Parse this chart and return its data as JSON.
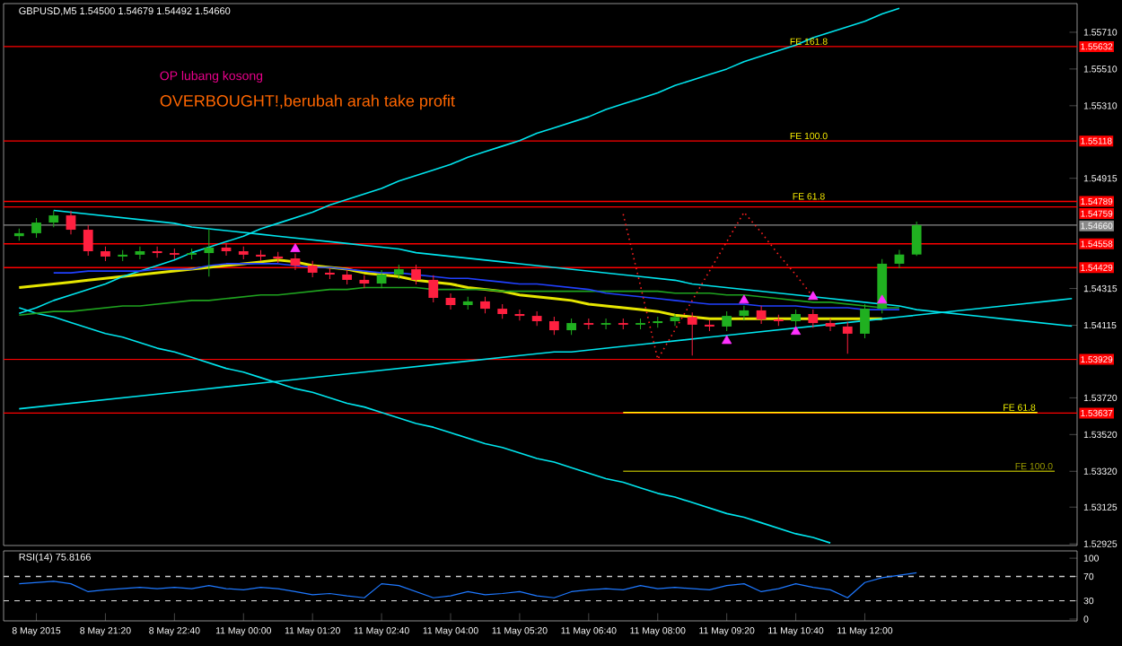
{
  "chart_data": [
    {
      "type": "candlestick",
      "title": "GBPUSD,M5  1.54500 1.54679 1.54492 1.54660",
      "categories": [
        null,
        null,
        null,
        null,
        null,
        null,
        null,
        null,
        null,
        null,
        null,
        null,
        null,
        null,
        null,
        null,
        null,
        null,
        null,
        null,
        null,
        null,
        null,
        null,
        null,
        null,
        null,
        null,
        null,
        null,
        null,
        null,
        null,
        null,
        null,
        null,
        null,
        null,
        null,
        null,
        null,
        null,
        null,
        null,
        null,
        null,
        null,
        null,
        null,
        null,
        null,
        null,
        null,
        null,
        null,
        null,
        null,
        null,
        null,
        null,
        null,
        null
      ],
      "ohlc": [
        [
          1.546,
          1.54641,
          1.54575,
          1.54616
        ],
        [
          1.54616,
          1.54699,
          1.54591,
          1.54674
        ],
        [
          1.54674,
          1.54738,
          1.54649,
          1.54713
        ],
        [
          1.54713,
          1.54738,
          1.5461,
          1.54635
        ],
        [
          1.54635,
          1.5466,
          1.54493,
          1.54518
        ],
        [
          1.54518,
          1.54543,
          1.54464,
          1.54489
        ],
        [
          1.54489,
          1.54524,
          1.54464,
          1.54499
        ],
        [
          1.54499,
          1.54543,
          1.54474,
          1.54518
        ],
        [
          1.54518,
          1.54543,
          1.54483,
          1.54508
        ],
        [
          1.54508,
          1.54533,
          1.54474,
          1.54499
        ],
        [
          1.54499,
          1.54533,
          1.54474,
          1.54508
        ],
        [
          1.54508,
          1.5464,
          1.5438,
          1.54538
        ],
        [
          1.54538,
          1.54563,
          1.54493,
          1.54518
        ],
        [
          1.54518,
          1.54543,
          1.54474,
          1.54499
        ],
        [
          1.54499,
          1.54524,
          1.54464,
          1.54489
        ],
        [
          1.54489,
          1.54514,
          1.54454,
          1.54479
        ],
        [
          1.54479,
          1.54504,
          1.54415,
          1.5444
        ],
        [
          1.5444,
          1.54465,
          1.54376,
          1.54401
        ],
        [
          1.54401,
          1.54426,
          1.54366,
          1.54391
        ],
        [
          1.54391,
          1.54416,
          1.54337,
          1.54362
        ],
        [
          1.54362,
          1.54387,
          1.54317,
          1.54342
        ],
        [
          1.54342,
          1.54416,
          1.54317,
          1.54391
        ],
        [
          1.54391,
          1.54445,
          1.54366,
          1.5442
        ],
        [
          1.5442,
          1.54445,
          1.54337,
          1.54362
        ],
        [
          1.54362,
          1.54387,
          1.54239,
          1.54264
        ],
        [
          1.54264,
          1.54289,
          1.542,
          1.54225
        ],
        [
          1.54225,
          1.5427,
          1.542,
          1.54245
        ],
        [
          1.54245,
          1.5427,
          1.5418,
          1.54205
        ],
        [
          1.54205,
          1.5423,
          1.54151,
          1.54176
        ],
        [
          1.54176,
          1.54201,
          1.54141,
          1.54166
        ],
        [
          1.54166,
          1.54191,
          1.54112,
          1.54137
        ],
        [
          1.54137,
          1.54162,
          1.54063,
          1.54088
        ],
        [
          1.54088,
          1.54152,
          1.54063,
          1.54127
        ],
        [
          1.54127,
          1.54152,
          1.54093,
          1.54118
        ],
        [
          1.54118,
          1.54152,
          1.54093,
          1.54127
        ],
        [
          1.54127,
          1.54152,
          1.54093,
          1.54118
        ],
        [
          1.54118,
          1.54152,
          1.54093,
          1.54127
        ],
        [
          1.54127,
          1.54162,
          1.54102,
          1.54137
        ],
        [
          1.54137,
          1.54175,
          1.54112,
          1.5416
        ],
        [
          1.5416,
          1.54185,
          1.5395,
          1.54118
        ],
        [
          1.54118,
          1.54143,
          1.54083,
          1.54108
        ],
        [
          1.54108,
          1.54191,
          1.54083,
          1.54166
        ],
        [
          1.54166,
          1.54221,
          1.54141,
          1.54196
        ],
        [
          1.54196,
          1.54221,
          1.54122,
          1.54147
        ],
        [
          1.54147,
          1.54172,
          1.54112,
          1.54137
        ],
        [
          1.54137,
          1.54201,
          1.54112,
          1.54176
        ],
        [
          1.54176,
          1.54201,
          1.54102,
          1.54127
        ],
        [
          1.54127,
          1.54152,
          1.54083,
          1.54108
        ],
        [
          1.54108,
          1.54133,
          1.5396,
          1.54069
        ],
        [
          1.54069,
          1.5423,
          1.54044,
          1.54205
        ],
        [
          1.54205,
          1.54475,
          1.5418,
          1.5445
        ],
        [
          1.5445,
          1.54525,
          1.54425,
          1.545
        ],
        [
          1.545,
          1.54679,
          1.54492,
          1.5466
        ],
        null,
        null,
        null,
        null,
        null,
        null,
        null,
        null,
        null
      ],
      "ylim": [
        1.52916,
        1.55866
      ],
      "yticks": [
        {
          "value": 1.5571,
          "label": "1.55710"
        },
        {
          "value": 1.5551,
          "label": "1.55510"
        },
        {
          "value": 1.5531,
          "label": "1.55310"
        },
        {
          "value": 1.54915,
          "label": "1.54915"
        },
        {
          "value": 1.54315,
          "label": "1.54315"
        },
        {
          "value": 1.54115,
          "label": "1.54115"
        },
        {
          "value": 1.5372,
          "label": "1.53720"
        },
        {
          "value": 1.5352,
          "label": "1.53520"
        },
        {
          "value": 1.5332,
          "label": "1.53320"
        },
        {
          "value": 1.53125,
          "label": "1.53125"
        },
        {
          "value": 1.52925,
          "label": "1.52925"
        }
      ],
      "tick_labels": "y",
      "series": [
        {
          "type": "line",
          "color": "#00e5ee",
          "values": [
            1.5418,
            1.5421,
            1.5425,
            1.5428,
            1.5431,
            1.5434,
            1.5438,
            1.5441,
            1.5444,
            1.5447,
            1.5451,
            1.5454,
            1.5457,
            1.546,
            1.5464,
            1.5467,
            1.547,
            1.5473,
            1.5477,
            1.548,
            1.5483,
            1.5486,
            1.549,
            1.5493,
            1.5496,
            1.5499,
            1.5503,
            1.5506,
            1.5509,
            1.5512,
            1.5516,
            1.5519,
            1.5522,
            1.5525,
            1.5529,
            1.5532,
            1.5535,
            1.5538,
            1.5542,
            1.5545,
            1.5548,
            1.5551,
            1.5555,
            1.5558,
            1.5561,
            1.5564,
            1.5568,
            1.5571,
            1.5574,
            1.5577,
            1.5581,
            1.5584,
            null,
            null,
            null,
            null,
            null,
            null,
            null,
            null,
            null,
            null
          ]
        },
        {
          "type": "line",
          "color": "#00e5ee",
          "values": [
            null,
            null,
            1.5474,
            1.5473,
            1.5472,
            1.5471,
            1.547,
            1.5469,
            1.5468,
            1.5467,
            1.5465,
            1.5464,
            1.5463,
            1.5462,
            1.5461,
            1.546,
            1.5459,
            1.5458,
            1.5457,
            1.5456,
            1.5455,
            1.5454,
            1.5453,
            1.5451,
            1.545,
            1.5449,
            1.5448,
            1.5447,
            1.5446,
            1.5445,
            1.5444,
            1.5443,
            1.5442,
            1.5441,
            1.544,
            1.5439,
            1.5438,
            1.5437,
            1.5436,
            1.5434,
            1.5433,
            1.5432,
            1.5431,
            1.543,
            1.5429,
            1.5428,
            1.5427,
            1.5426,
            1.5425,
            1.5424,
            1.5423,
            1.5422,
            1.542,
            1.5419,
            1.5418,
            1.5417,
            1.5416,
            1.5415,
            1.5414,
            1.5413,
            1.5412,
            1.5411
          ]
        },
        {
          "type": "line",
          "color": "#00e5ee",
          "values": [
            1.5366,
            1.5367,
            1.5368,
            1.5369,
            1.537,
            1.5371,
            1.5372,
            1.5373,
            1.5374,
            1.5375,
            1.5376,
            1.5377,
            1.5378,
            1.5379,
            1.538,
            1.5381,
            1.5382,
            1.5383,
            1.5384,
            1.5385,
            1.5386,
            1.5387,
            1.5388,
            1.5389,
            1.539,
            1.5391,
            1.5392,
            1.5393,
            1.5394,
            1.5395,
            1.5396,
            1.5397,
            1.5397,
            1.5398,
            1.5399,
            1.54,
            1.5401,
            1.5402,
            1.5403,
            1.5404,
            1.5405,
            1.5406,
            1.5407,
            1.5408,
            1.5409,
            1.541,
            1.5411,
            1.5412,
            1.5413,
            1.5414,
            1.5415,
            1.5416,
            1.5417,
            1.5418,
            1.5419,
            1.542,
            1.5421,
            1.5422,
            1.5423,
            1.5424,
            1.5425,
            1.5426
          ]
        },
        {
          "type": "line",
          "color": "#00e5ee",
          "values": [
            1.5421,
            1.5418,
            1.5416,
            1.5413,
            1.541,
            1.5407,
            1.5405,
            1.5402,
            1.5399,
            1.5397,
            1.5394,
            1.5391,
            1.5388,
            1.5386,
            1.5383,
            1.538,
            1.5377,
            1.5375,
            1.5372,
            1.5369,
            1.5367,
            1.5364,
            1.5361,
            1.5358,
            1.5356,
            1.5353,
            1.535,
            1.5347,
            1.5345,
            1.5342,
            1.5339,
            1.5337,
            1.5334,
            1.5331,
            1.5328,
            1.5326,
            1.5323,
            1.532,
            1.5318,
            1.5315,
            1.5312,
            1.5309,
            1.5307,
            1.5304,
            1.5301,
            1.5298,
            1.5296,
            1.5293,
            null,
            null,
            null,
            null,
            null,
            null,
            null,
            null,
            null,
            null,
            null,
            null,
            null,
            null
          ]
        },
        {
          "type": "line",
          "color": "#1fa31f",
          "values": [
            1.5417,
            1.5418,
            1.5419,
            1.5419,
            1.542,
            1.5421,
            1.5422,
            1.5422,
            1.5423,
            1.5424,
            1.5425,
            1.5425,
            1.5426,
            1.5427,
            1.5428,
            1.5428,
            1.5429,
            1.543,
            1.5431,
            1.5431,
            1.5432,
            1.5432,
            1.5432,
            1.5432,
            1.5431,
            1.5431,
            1.5431,
            1.5431,
            1.543,
            1.543,
            1.543,
            1.543,
            1.543,
            1.543,
            1.543,
            1.543,
            1.543,
            1.543,
            1.5429,
            1.5429,
            1.5429,
            1.5428,
            1.5428,
            1.5427,
            1.5426,
            1.5425,
            1.5424,
            1.5424,
            1.5423,
            1.5422,
            1.5421,
            1.5421,
            null,
            null,
            null,
            null,
            null,
            null,
            null,
            null,
            null,
            null
          ]
        },
        {
          "type": "line",
          "color": "#2040ff",
          "values": [
            null,
            null,
            1.544,
            1.544,
            1.5441,
            1.5441,
            1.5441,
            1.5441,
            1.5442,
            1.5442,
            1.5442,
            1.5444,
            1.5445,
            1.5445,
            1.5445,
            1.5445,
            1.5444,
            1.5443,
            1.5443,
            1.5442,
            1.5441,
            1.544,
            1.544,
            1.5439,
            1.5438,
            1.5437,
            1.5437,
            1.5436,
            1.5435,
            1.5434,
            1.5434,
            1.5433,
            1.5432,
            1.5431,
            1.5429,
            1.5428,
            1.5427,
            1.5426,
            1.5425,
            1.5424,
            1.5423,
            1.5423,
            1.5423,
            1.5422,
            1.5422,
            1.5422,
            1.5421,
            1.5421,
            1.5421,
            1.542,
            1.542,
            1.542,
            null,
            null,
            null,
            null,
            null,
            null,
            null,
            null,
            null,
            null
          ]
        },
        {
          "type": "line",
          "color": "#e6e600",
          "values": [
            1.5432,
            1.5433,
            1.5434,
            1.5435,
            1.5436,
            1.5437,
            1.5438,
            1.5439,
            1.544,
            1.5441,
            1.5442,
            1.5443,
            1.5444,
            1.5445,
            1.5446,
            1.5447,
            1.5446,
            1.5444,
            1.5443,
            1.5442,
            1.544,
            1.5439,
            1.5438,
            1.5436,
            1.5435,
            1.5434,
            1.5432,
            1.5431,
            1.543,
            1.5428,
            1.5427,
            1.5426,
            1.5425,
            1.5423,
            1.5422,
            1.5421,
            1.542,
            1.5419,
            1.5417,
            1.5416,
            1.5415,
            1.5415,
            1.5415,
            1.5415,
            1.5415,
            1.5415,
            1.5415,
            1.5415,
            1.5415,
            1.5415,
            1.5415,
            null,
            null,
            null,
            null,
            null,
            null,
            null,
            null,
            null,
            null,
            null
          ]
        },
        {
          "type": "line",
          "color": "#ff2020",
          "line_style": "dotted",
          "values": [
            null,
            null,
            null,
            null,
            null,
            null,
            null,
            null,
            null,
            null,
            null,
            null,
            null,
            null,
            null,
            null,
            null,
            null,
            null,
            null,
            null,
            null,
            null,
            null,
            null,
            null,
            null,
            null,
            null,
            null,
            null,
            null,
            null,
            null,
            null,
            1.5472,
            1.5433,
            1.5393,
            1.5409,
            1.5425,
            1.5441,
            1.5457,
            1.5473,
            1.5462,
            1.545,
            1.5439,
            1.5427,
            null,
            null,
            null,
            null,
            null,
            null,
            null,
            null,
            null,
            null,
            null,
            null,
            null,
            null,
            null
          ]
        },
        {
          "type": "line",
          "name": "FE 61.8",
          "color": "#ffff00",
          "values": [
            null,
            null,
            null,
            null,
            null,
            null,
            null,
            null,
            null,
            null,
            null,
            null,
            null,
            null,
            null,
            null,
            null,
            null,
            null,
            null,
            null,
            null,
            null,
            null,
            null,
            null,
            null,
            null,
            null,
            null,
            null,
            null,
            null,
            null,
            null,
            1.5364,
            1.5364,
            1.5364,
            1.5364,
            1.5364,
            1.5364,
            1.5364,
            1.5364,
            1.5364,
            1.5364,
            1.5364,
            1.5364,
            1.5364,
            1.5364,
            1.5364,
            1.5364,
            1.5364,
            1.5364,
            1.5364,
            1.5364,
            1.5364,
            1.5364,
            1.5364,
            1.5364,
            1.5364,
            null,
            null
          ]
        },
        {
          "type": "line",
          "name": "FE 100.0",
          "color": "#9a9a00",
          "values": [
            null,
            null,
            null,
            null,
            null,
            null,
            null,
            null,
            null,
            null,
            null,
            null,
            null,
            null,
            null,
            null,
            null,
            null,
            null,
            null,
            null,
            null,
            null,
            null,
            null,
            null,
            null,
            null,
            null,
            null,
            null,
            null,
            null,
            null,
            null,
            1.5332,
            1.5332,
            1.5332,
            1.5332,
            1.5332,
            1.5332,
            1.5332,
            1.5332,
            1.5332,
            1.5332,
            1.5332,
            1.5332,
            1.5332,
            1.5332,
            1.5332,
            1.5332,
            1.5332,
            1.5332,
            1.5332,
            1.5332,
            1.5332,
            1.5332,
            1.5332,
            1.5332,
            1.5332,
            1.5332,
            null
          ]
        },
        {
          "type": "scatter",
          "marker": "triangle",
          "color": "#ff30ff",
          "values": [
            null,
            null,
            null,
            null,
            null,
            null,
            null,
            null,
            null,
            null,
            null,
            null,
            null,
            null,
            null,
            null,
            null,
            null,
            null,
            null,
            null,
            null,
            null,
            null,
            null,
            null,
            null,
            null,
            null,
            null,
            null,
            null,
            null,
            null,
            null,
            null,
            null,
            null,
            null,
            null,
            null,
            1.5403,
            null,
            null,
            null,
            1.5408,
            null,
            null,
            null,
            null,
            1.5425,
            null,
            null,
            null,
            null,
            null,
            null,
            null,
            null,
            null,
            null,
            null
          ]
        },
        {
          "type": "scatter",
          "marker": "triangle",
          "color": "#ff30ff",
          "values": [
            null,
            null,
            null,
            null,
            null,
            null,
            null,
            null,
            null,
            null,
            null,
            null,
            null,
            null,
            null,
            null,
            1.5453,
            null,
            null,
            null,
            null,
            null,
            null,
            null,
            null,
            null,
            null,
            null,
            null,
            null,
            null,
            null,
            null,
            null,
            null,
            null,
            null,
            null,
            null,
            null,
            null,
            null,
            1.5425,
            null,
            null,
            null,
            1.5427,
            null,
            null,
            null,
            null,
            null,
            null,
            null,
            null,
            null,
            null,
            null,
            null,
            null,
            null,
            null
          ]
        }
      ],
      "ref_lines": [
        {
          "axis": "y",
          "value": 1.55632,
          "label": "1.55632",
          "color": "#ff0000"
        },
        {
          "axis": "y",
          "value": 1.55118,
          "label": "1.55118",
          "color": "#ff0000"
        },
        {
          "axis": "y",
          "value": 1.54789,
          "label": "1.54789",
          "color": "#ff0000"
        },
        {
          "axis": "y",
          "value": 1.54759,
          "label": "1.54759",
          "color": "#ff0000"
        },
        {
          "axis": "y",
          "value": 1.5466,
          "label": "1.54660",
          "color": "#8a8a8a"
        },
        {
          "axis": "y",
          "value": 1.54558,
          "label": "1.54558",
          "color": "#ff0000"
        },
        {
          "axis": "y",
          "value": 1.54429,
          "label": "1.54429",
          "color": "#ff0000"
        },
        {
          "axis": "y",
          "value": 1.53929,
          "label": "1.53929",
          "color": "#ff0000"
        },
        {
          "axis": "y",
          "value": 1.53637,
          "label": "1.53637",
          "color": "#ff0000"
        }
      ],
      "annotations": [
        "OP lubang kosong",
        "OVERBOUGHT!,berubah arah take profit",
        {
          "text": "FE 161.8",
          "y": 1.55632
        },
        {
          "text": "FE 100.0",
          "y": 1.55118
        },
        {
          "text": "FE 61.8",
          "y": 1.54789
        }
      ]
    },
    {
      "type": "line",
      "title": "RSI(14) 75.8166",
      "categories": [
        null,
        "8 May 2015",
        null,
        null,
        null,
        "8 May 21:20",
        null,
        null,
        null,
        "8 May 22:40",
        null,
        null,
        null,
        "11 May 00:00",
        null,
        null,
        null,
        "11 May 01:20",
        null,
        null,
        null,
        "11 May 02:40",
        null,
        null,
        null,
        "11 May 04:00",
        null,
        null,
        null,
        "11 May 05:20",
        null,
        null,
        null,
        "11 May 06:40",
        null,
        null,
        null,
        "11 May 08:00",
        null,
        null,
        null,
        "11 May 09:20",
        null,
        null,
        null,
        "11 May 10:40",
        null,
        null,
        null,
        "11 May 12:00",
        null,
        null,
        null,
        null,
        null,
        null,
        null,
        null,
        null,
        null,
        null,
        null
      ],
      "values": [
        58,
        60,
        62,
        58,
        45,
        48,
        50,
        52,
        50,
        52,
        50,
        55,
        50,
        48,
        52,
        50,
        45,
        40,
        42,
        38,
        35,
        58,
        55,
        45,
        35,
        38,
        45,
        40,
        42,
        45,
        38,
        35,
        45,
        48,
        50,
        48,
        55,
        50,
        52,
        50,
        48,
        55,
        58,
        45,
        50,
        58,
        52,
        48,
        35,
        60,
        68,
        72,
        76,
        null,
        null,
        null,
        null,
        null,
        null,
        null,
        null,
        null
      ],
      "color": "#1e78ff",
      "ylim": [
        -3,
        112
      ],
      "yticks": [
        0,
        30,
        70,
        100
      ],
      "ref_lines": [
        {
          "axis": "y",
          "value": 70,
          "color": "#cccccc",
          "line_style": "dashed"
        },
        {
          "axis": "y",
          "value": 30,
          "color": "#cccccc",
          "line_style": "dashed"
        }
      ]
    }
  ]
}
